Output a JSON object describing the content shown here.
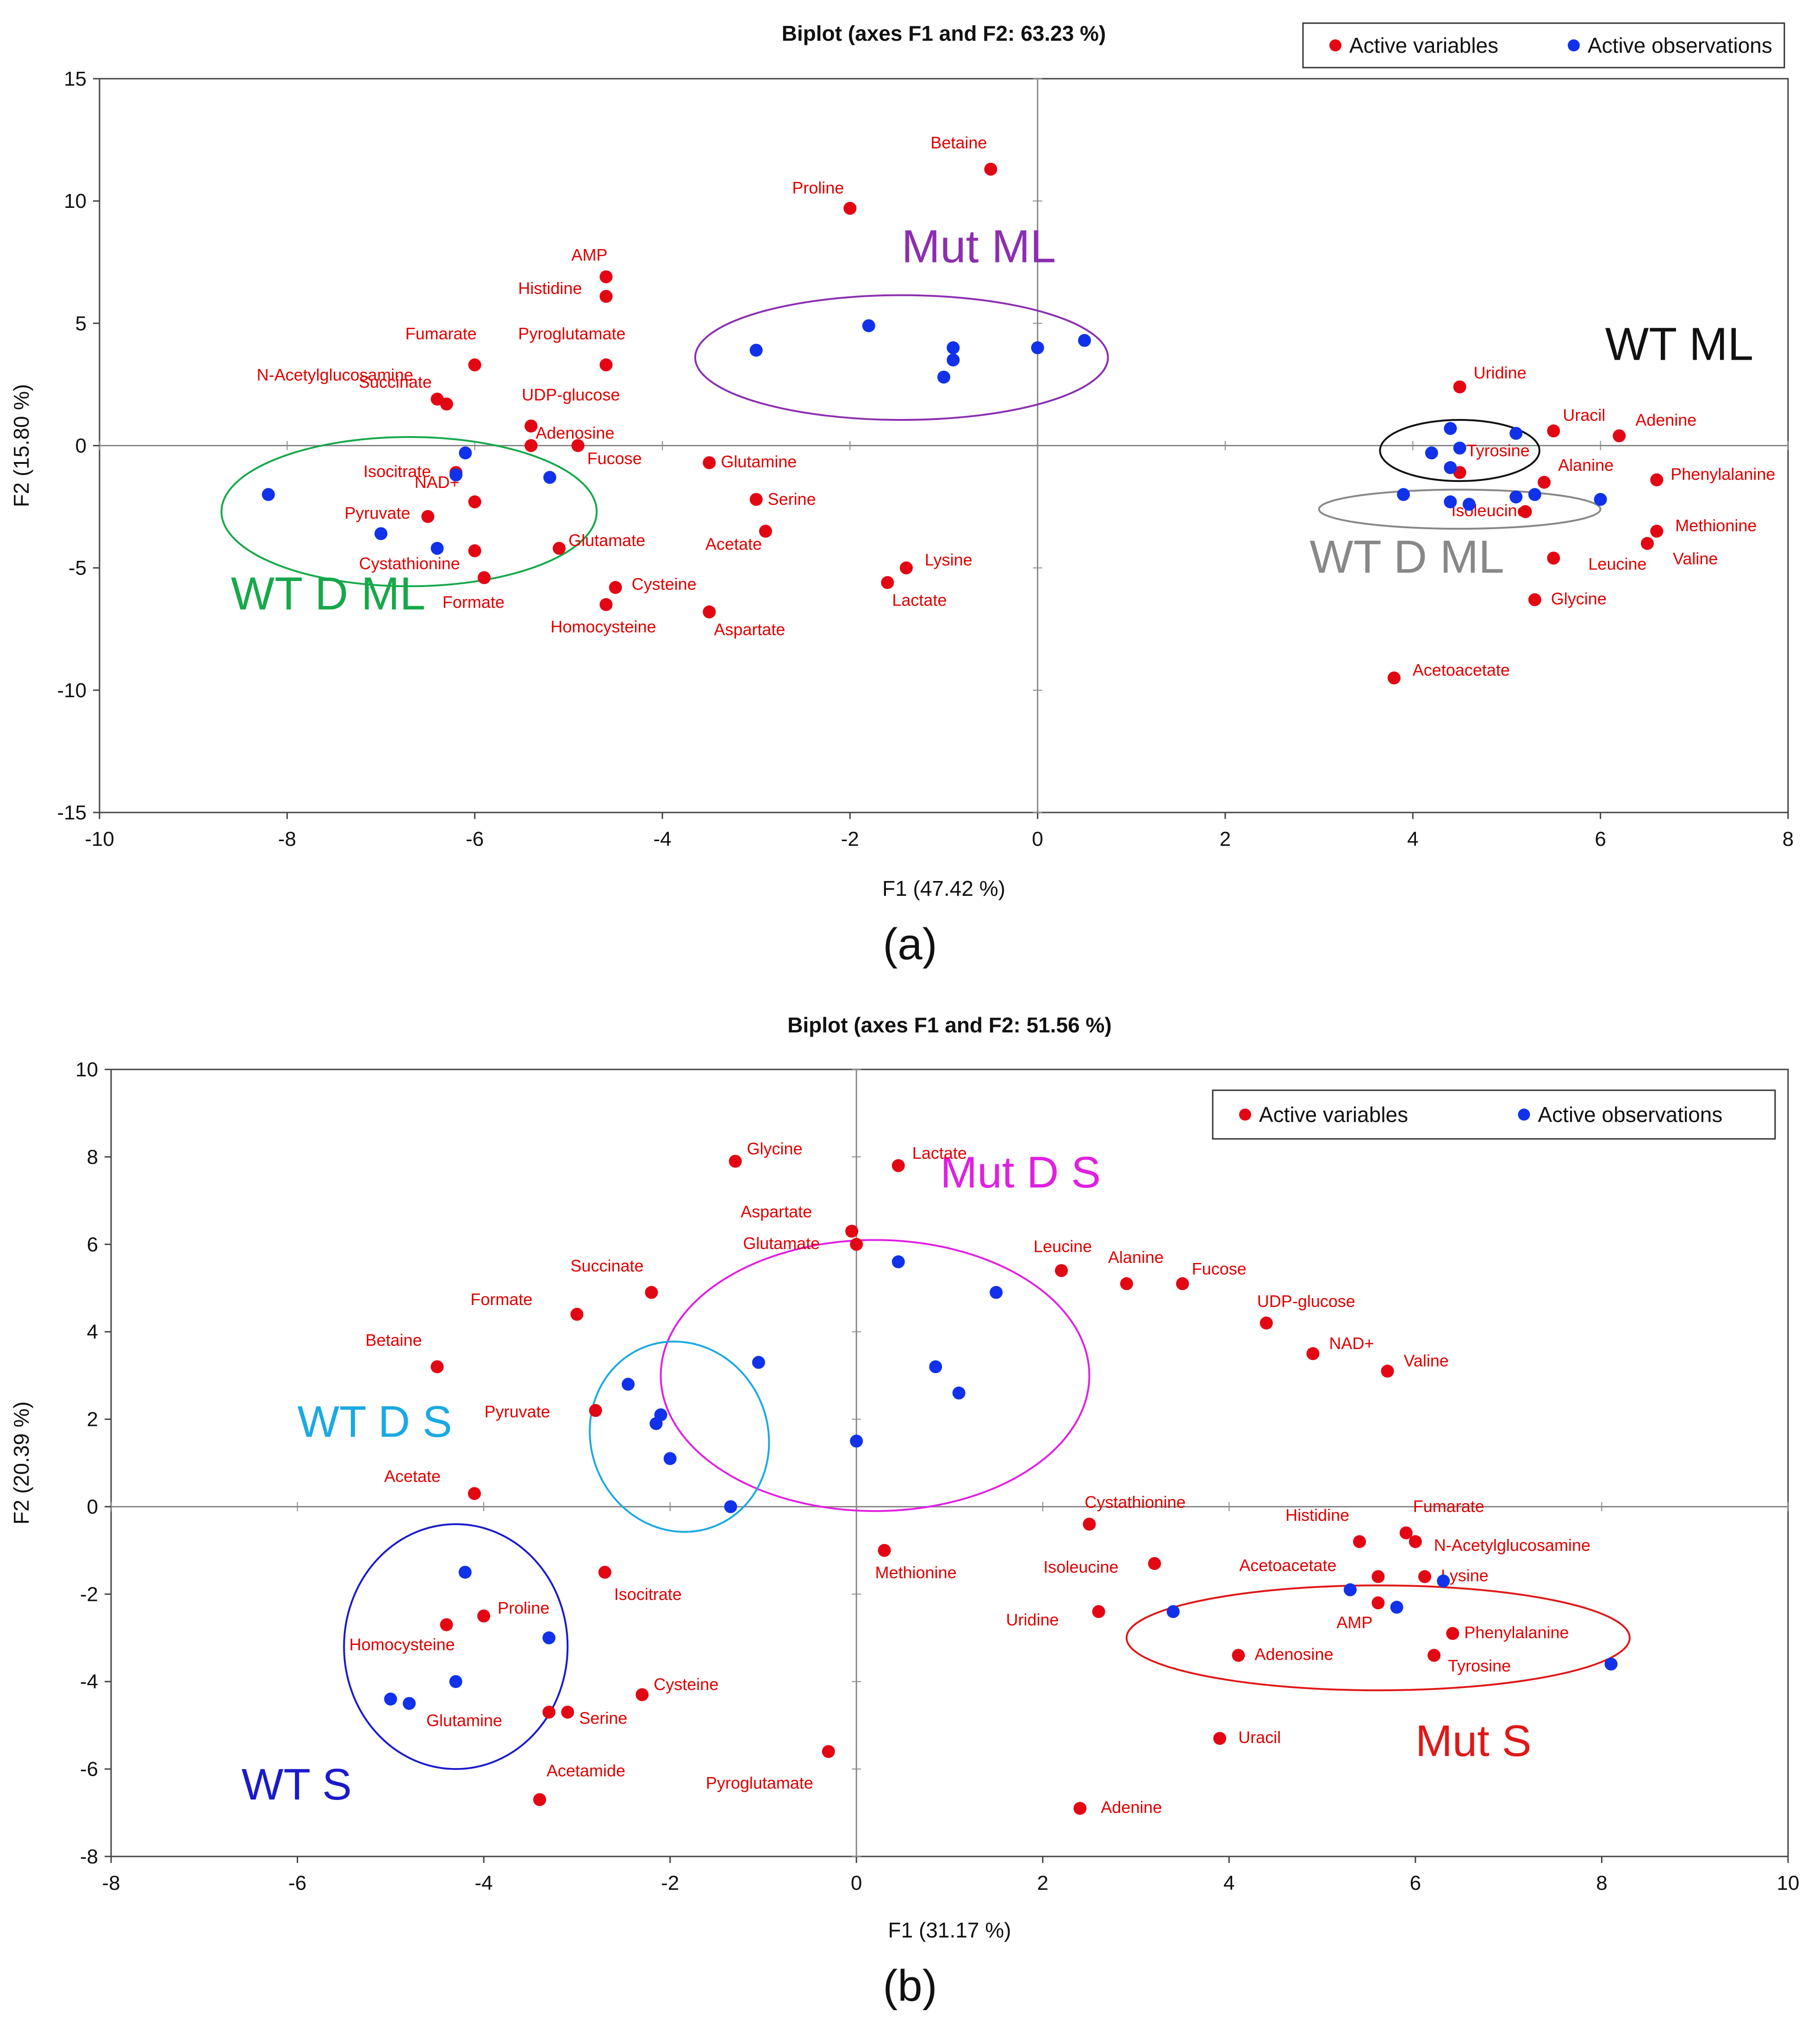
{
  "colors": {
    "variable": "#e30613",
    "observation": "#1132ea",
    "axis": "#888888",
    "frame": "#444444"
  },
  "panels": [
    {
      "label": "(a)"
    },
    {
      "label": "(b)"
    }
  ],
  "chart_data": [
    {
      "type": "scatter",
      "title": "Biplot (axes F1 and F2: 63.23 %)",
      "xlabel": "F1 (47.42 %)",
      "ylabel": "F2 (15.80 %)",
      "xlim": [
        -10,
        8
      ],
      "ylim": [
        -15,
        15
      ],
      "xticks": [
        -10,
        -8,
        -6,
        -4,
        -2,
        0,
        2,
        4,
        6,
        8
      ],
      "yticks": [
        -15,
        -10,
        -5,
        0,
        5,
        10,
        15
      ],
      "legend": {
        "position": "top-right",
        "items": [
          "Active variables",
          "Active observations"
        ]
      },
      "variables": [
        {
          "name": "Betaine",
          "x": -0.5,
          "y": 11.3
        },
        {
          "name": "Proline",
          "x": -2.0,
          "y": 9.7
        },
        {
          "name": "AMP",
          "x": -4.6,
          "y": 6.9
        },
        {
          "name": "Histidine",
          "x": -4.6,
          "y": 6.1
        },
        {
          "name": "Fumarate",
          "x": -6.0,
          "y": 3.3
        },
        {
          "name": "Pyroglutamate",
          "x": -4.6,
          "y": 3.3
        },
        {
          "name": "N-Acetylglucosamine",
          "x": -6.4,
          "y": 1.9
        },
        {
          "name": "Succinate",
          "x": -6.3,
          "y": 1.7
        },
        {
          "name": "UDP-glucose",
          "x": -5.4,
          "y": 0.8
        },
        {
          "name": "Adenosine",
          "x": -5.4,
          "y": 0.0
        },
        {
          "name": "Fucose",
          "x": -4.9,
          "y": 0.0
        },
        {
          "name": "Glutamine",
          "x": -3.5,
          "y": -0.7
        },
        {
          "name": "Isocitrate",
          "x": -6.2,
          "y": -1.1
        },
        {
          "name": "NAD+",
          "x": -6.0,
          "y": -2.3
        },
        {
          "name": "Pyruvate",
          "x": -6.5,
          "y": -2.9
        },
        {
          "name": "Serine",
          "x": -3.0,
          "y": -2.2
        },
        {
          "name": "Acetate",
          "x": -2.9,
          "y": -3.5
        },
        {
          "name": "Glutamate",
          "x": -5.1,
          "y": -4.2
        },
        {
          "name": "Cystathionine",
          "x": -6.0,
          "y": -4.3
        },
        {
          "name": "Formate",
          "x": -5.9,
          "y": -5.4
        },
        {
          "name": "Cysteine",
          "x": -4.5,
          "y": -5.8
        },
        {
          "name": "Homocysteine",
          "x": -4.6,
          "y": -6.5
        },
        {
          "name": "Aspartate",
          "x": -3.5,
          "y": -6.8
        },
        {
          "name": "Lysine",
          "x": -1.4,
          "y": -5.0
        },
        {
          "name": "Lactate",
          "x": -1.6,
          "y": -5.6
        },
        {
          "name": "Uridine",
          "x": 4.5,
          "y": 2.4
        },
        {
          "name": "Uracil",
          "x": 5.5,
          "y": 0.6
        },
        {
          "name": "Adenine",
          "x": 6.2,
          "y": 0.4
        },
        {
          "name": "Tyrosine",
          "x": 4.5,
          "y": -1.1
        },
        {
          "name": "Alanine",
          "x": 5.4,
          "y": -1.5
        },
        {
          "name": "Phenylalanine",
          "x": 6.6,
          "y": -1.4
        },
        {
          "name": "Methionine",
          "x": 6.6,
          "y": -3.5
        },
        {
          "name": "Valine",
          "x": 6.5,
          "y": -4.0
        },
        {
          "name": "Isoleucine",
          "x": 5.2,
          "y": -2.7
        },
        {
          "name": "Leucine",
          "x": 5.5,
          "y": -4.6
        },
        {
          "name": "Glycine",
          "x": 5.3,
          "y": -6.3
        },
        {
          "name": "Acetoacetate",
          "x": 3.8,
          "y": -9.5
        }
      ],
      "observations": [
        {
          "x": -3.0,
          "y": 3.9
        },
        {
          "x": -1.8,
          "y": 4.9
        },
        {
          "x": -0.9,
          "y": 4.0
        },
        {
          "x": -0.9,
          "y": 3.5
        },
        {
          "x": -1.0,
          "y": 2.8
        },
        {
          "x": 0.0,
          "y": 4.0
        },
        {
          "x": 0.5,
          "y": 4.3
        },
        {
          "x": -6.1,
          "y": -0.3
        },
        {
          "x": -6.2,
          "y": -1.2
        },
        {
          "x": -5.2,
          "y": -1.3
        },
        {
          "x": -8.2,
          "y": -2.0
        },
        {
          "x": -7.0,
          "y": -3.6
        },
        {
          "x": -6.4,
          "y": -4.2
        },
        {
          "x": 4.4,
          "y": 0.7
        },
        {
          "x": 5.1,
          "y": 0.5
        },
        {
          "x": 4.5,
          "y": -0.1
        },
        {
          "x": 4.2,
          "y": -0.3
        },
        {
          "x": 4.4,
          "y": -0.9
        },
        {
          "x": 3.9,
          "y": -2.0
        },
        {
          "x": 4.4,
          "y": -2.3
        },
        {
          "x": 4.6,
          "y": -2.4
        },
        {
          "x": 5.1,
          "y": -2.1
        },
        {
          "x": 5.3,
          "y": -2.0
        },
        {
          "x": 6.0,
          "y": -2.2
        }
      ],
      "groups": [
        {
          "label": "Mut ML",
          "color": "#8b2fb0",
          "cx": -1.45,
          "cy": 3.6,
          "rx": 2.2,
          "ry": 2.55
        },
        {
          "label": "WT D ML",
          "color": "#17a84a",
          "cx": -6.7,
          "cy": -2.7,
          "rx": 2.0,
          "ry": 3.05
        },
        {
          "label": "WT ML",
          "color": "#111111",
          "cx": 4.5,
          "cy": -0.2,
          "rx": 0.85,
          "ry": 1.25
        },
        {
          "label": "WT D ML",
          "color": "#888888",
          "cx": 4.5,
          "cy": -2.6,
          "rx": 1.5,
          "ry": 0.8
        }
      ]
    },
    {
      "type": "scatter",
      "title": "Biplot (axes F1 and F2: 51.56 %)",
      "xlabel": "F1 (31.17 %)",
      "ylabel": "F2 (20.39 %)",
      "xlim": [
        -8,
        10
      ],
      "ylim": [
        -8,
        10
      ],
      "xticks": [
        -8,
        -6,
        -4,
        -2,
        0,
        2,
        4,
        6,
        8,
        10
      ],
      "yticks": [
        -8,
        -6,
        -4,
        -2,
        0,
        2,
        4,
        6,
        8,
        10
      ],
      "legend": {
        "position": "top-right",
        "items": [
          "Active variables",
          "Active observations"
        ]
      },
      "variables": [
        {
          "name": "Glycine",
          "x": -1.3,
          "y": 7.9
        },
        {
          "name": "Lactate",
          "x": 0.45,
          "y": 7.8
        },
        {
          "name": "Aspartate",
          "x": -0.05,
          "y": 6.3
        },
        {
          "name": "Glutamate",
          "x": 0.0,
          "y": 6.0
        },
        {
          "name": "Succinate",
          "x": -2.2,
          "y": 4.9
        },
        {
          "name": "Formate",
          "x": -3.0,
          "y": 4.4
        },
        {
          "name": "Betaine",
          "x": -4.5,
          "y": 3.2
        },
        {
          "name": "Pyruvate",
          "x": -2.8,
          "y": 2.2
        },
        {
          "name": "Acetate",
          "x": -4.1,
          "y": 0.3
        },
        {
          "name": "Leucine",
          "x": 2.2,
          "y": 5.4
        },
        {
          "name": "Alanine",
          "x": 2.9,
          "y": 5.1
        },
        {
          "name": "Fucose",
          "x": 3.5,
          "y": 5.1
        },
        {
          "name": "UDP-glucose",
          "x": 4.4,
          "y": 4.2
        },
        {
          "name": "NAD+",
          "x": 4.9,
          "y": 3.5
        },
        {
          "name": "Valine",
          "x": 5.7,
          "y": 3.1
        },
        {
          "name": "Cystathionine",
          "x": 2.5,
          "y": -0.4
        },
        {
          "name": "Histidine",
          "x": 5.4,
          "y": -0.8
        },
        {
          "name": "Fumarate",
          "x": 5.9,
          "y": -0.6
        },
        {
          "name": "N-Acetylglucosamine",
          "x": 6.0,
          "y": -0.8
        },
        {
          "name": "Methionine",
          "x": 0.3,
          "y": -1.0
        },
        {
          "name": "Isoleucine",
          "x": 3.2,
          "y": -1.3
        },
        {
          "name": "Acetoacetate",
          "x": 5.6,
          "y": -1.6
        },
        {
          "name": "Lysine",
          "x": 6.1,
          "y": -1.6
        },
        {
          "name": "Uridine",
          "x": 2.6,
          "y": -2.4
        },
        {
          "name": "AMP",
          "x": 5.6,
          "y": -2.2
        },
        {
          "name": "Phenylalanine",
          "x": 6.4,
          "y": -2.9
        },
        {
          "name": "Adenosine",
          "x": 4.1,
          "y": -3.4
        },
        {
          "name": "Tyrosine",
          "x": 6.2,
          "y": -3.4
        },
        {
          "name": "Uracil",
          "x": 3.9,
          "y": -5.3
        },
        {
          "name": "Adenine",
          "x": 2.4,
          "y": -6.9
        },
        {
          "name": "Isocitrate",
          "x": -2.7,
          "y": -1.5
        },
        {
          "name": "Homocysteine",
          "x": -4.4,
          "y": -2.7
        },
        {
          "name": "Proline",
          "x": -4.0,
          "y": -2.5
        },
        {
          "name": "Cysteine",
          "x": -2.3,
          "y": -4.3
        },
        {
          "name": "Glutamine",
          "x": -3.3,
          "y": -4.7
        },
        {
          "name": "Serine",
          "x": -3.1,
          "y": -4.7
        },
        {
          "name": "Pyroglutamate",
          "x": -0.3,
          "y": -5.6
        },
        {
          "name": "Acetamide",
          "x": -3.4,
          "y": -6.7
        }
      ],
      "observations": [
        {
          "x": 0.45,
          "y": 5.6
        },
        {
          "x": 1.5,
          "y": 4.9
        },
        {
          "x": -1.05,
          "y": 3.3
        },
        {
          "x": 0.85,
          "y": 3.2
        },
        {
          "x": 1.1,
          "y": 2.6
        },
        {
          "x": 0.0,
          "y": 1.5
        },
        {
          "x": -2.45,
          "y": 2.8
        },
        {
          "x": -2.1,
          "y": 2.1
        },
        {
          "x": -2.15,
          "y": 1.9
        },
        {
          "x": -2.0,
          "y": 1.1
        },
        {
          "x": -1.35,
          "y": 0.0
        },
        {
          "x": -4.2,
          "y": -1.5
        },
        {
          "x": -3.3,
          "y": -3.0
        },
        {
          "x": -4.3,
          "y": -4.0
        },
        {
          "x": -5.0,
          "y": -4.4
        },
        {
          "x": -4.8,
          "y": -4.5
        },
        {
          "x": 5.3,
          "y": -1.9
        },
        {
          "x": 6.3,
          "y": -1.7
        },
        {
          "x": 5.8,
          "y": -2.3
        },
        {
          "x": 3.4,
          "y": -2.4
        },
        {
          "x": 8.1,
          "y": -3.6
        }
      ],
      "groups": [
        {
          "label": "Mut D S",
          "color": "#e020e0",
          "cx": 0.2,
          "cy": 3.0,
          "rx": 2.3,
          "ry": 3.1,
          "rot": 0
        },
        {
          "label": "WT D S",
          "color": "#1aa9e3",
          "cx": -1.9,
          "cy": 1.6,
          "rx": 0.95,
          "ry": 2.2,
          "rot": -22
        },
        {
          "label": "WT S",
          "color": "#1a1acc",
          "cx": -4.3,
          "cy": -3.2,
          "rx": 1.2,
          "ry": 2.8,
          "rot": 0
        },
        {
          "label": "Mut S",
          "color": "#e01818",
          "cx": 5.6,
          "cy": -3.0,
          "rx": 2.7,
          "ry": 1.2,
          "rot": 0
        }
      ]
    }
  ]
}
